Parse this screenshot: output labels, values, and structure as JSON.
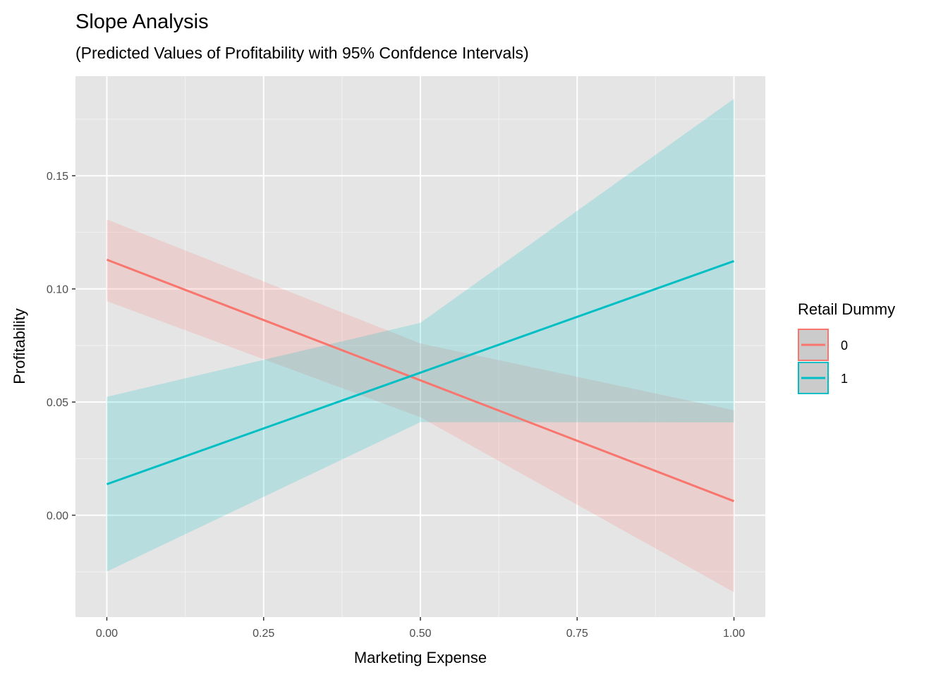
{
  "chart_data": {
    "type": "line",
    "title": "Slope Analysis",
    "subtitle": "(Predicted Values of Profitability with 95% Confdence Intervals)",
    "xlabel": "Marketing Expense",
    "ylabel": "Profitability",
    "xlim": [
      -0.05,
      1.05
    ],
    "ylim": [
      -0.045,
      0.194
    ],
    "x_ticks": [
      0,
      0.25,
      0.5,
      0.75,
      1
    ],
    "x_tick_labels": [
      "0.00",
      "0.25",
      "0.50",
      "0.75",
      "1.00"
    ],
    "y_ticks": [
      0,
      0.05,
      0.1,
      0.15
    ],
    "y_tick_labels": [
      "0.00",
      "0.05",
      "0.10",
      "0.15"
    ],
    "grid": true,
    "legend": {
      "title": "Retail Dummy",
      "placement": "right"
    },
    "series": [
      {
        "name": "0",
        "color": "#F8766D",
        "x": [
          0,
          0.5,
          1
        ],
        "y": [
          0.1129,
          0.0596,
          0.0062
        ],
        "lower": [
          0.0946,
          0.0433,
          -0.034
        ],
        "upper": [
          0.1307,
          0.0759,
          0.0464
        ]
      },
      {
        "name": "1",
        "color": "#00BFC4",
        "x": [
          0,
          0.5,
          1
        ],
        "y": [
          0.0137,
          0.063,
          0.1123
        ],
        "lower": [
          -0.0249,
          0.0411,
          0.041
        ],
        "upper": [
          0.0523,
          0.085,
          0.184
        ]
      }
    ]
  }
}
